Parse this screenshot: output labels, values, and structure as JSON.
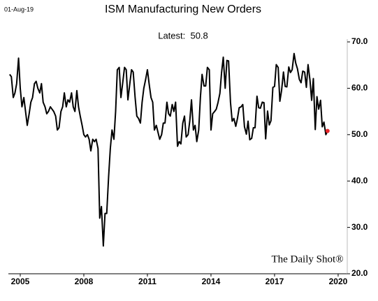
{
  "chart_data": {
    "type": "line",
    "date_stamp": "01-Aug-19",
    "title": "ISM Manufacturing New Orders",
    "annotation": "Latest:  50.8",
    "source": "The Daily Shot®",
    "color": "#000000",
    "highlight_color": "#e8262a",
    "xlim": [
      2004.44,
      2020.43
    ],
    "xticks": [
      2005,
      2008,
      2011,
      2014,
      2017,
      2020
    ],
    "ylim": [
      20,
      70
    ],
    "yticks": [
      {
        "value": 20,
        "label": "20.0"
      },
      {
        "value": 30,
        "label": "30.0"
      },
      {
        "value": 40,
        "label": "40.0"
      },
      {
        "value": 50,
        "label": "50.0"
      },
      {
        "value": 60,
        "label": "60.0"
      },
      {
        "value": 70,
        "label": "70.0"
      }
    ],
    "x": [
      2004.5,
      2004.58,
      2004.67,
      2004.75,
      2004.83,
      2004.92,
      2005.0,
      2005.08,
      2005.17,
      2005.25,
      2005.33,
      2005.42,
      2005.5,
      2005.58,
      2005.67,
      2005.75,
      2005.83,
      2005.92,
      2006.0,
      2006.08,
      2006.17,
      2006.25,
      2006.33,
      2006.42,
      2006.5,
      2006.58,
      2006.67,
      2006.75,
      2006.83,
      2006.92,
      2007.0,
      2007.08,
      2007.17,
      2007.25,
      2007.33,
      2007.42,
      2007.5,
      2007.58,
      2007.67,
      2007.75,
      2007.83,
      2007.92,
      2008.0,
      2008.08,
      2008.17,
      2008.25,
      2008.33,
      2008.42,
      2008.5,
      2008.58,
      2008.67,
      2008.75,
      2008.83,
      2008.92,
      2009.0,
      2009.08,
      2009.17,
      2009.25,
      2009.33,
      2009.42,
      2009.5,
      2009.58,
      2009.67,
      2009.75,
      2009.83,
      2009.92,
      2010.0,
      2010.08,
      2010.17,
      2010.25,
      2010.33,
      2010.42,
      2010.5,
      2010.58,
      2010.67,
      2010.75,
      2010.83,
      2010.92,
      2011.0,
      2011.08,
      2011.17,
      2011.25,
      2011.33,
      2011.42,
      2011.5,
      2011.58,
      2011.67,
      2011.75,
      2011.83,
      2011.92,
      2012.0,
      2012.08,
      2012.17,
      2012.25,
      2012.33,
      2012.42,
      2012.5,
      2012.58,
      2012.67,
      2012.75,
      2012.83,
      2012.92,
      2013.0,
      2013.08,
      2013.17,
      2013.25,
      2013.33,
      2013.42,
      2013.5,
      2013.58,
      2013.67,
      2013.75,
      2013.83,
      2013.92,
      2014.0,
      2014.08,
      2014.17,
      2014.25,
      2014.33,
      2014.42,
      2014.5,
      2014.58,
      2014.67,
      2014.75,
      2014.83,
      2014.92,
      2015.0,
      2015.08,
      2015.17,
      2015.25,
      2015.33,
      2015.42,
      2015.5,
      2015.58,
      2015.67,
      2015.75,
      2015.83,
      2015.92,
      2016.0,
      2016.08,
      2016.17,
      2016.25,
      2016.33,
      2016.42,
      2016.5,
      2016.58,
      2016.67,
      2016.75,
      2016.83,
      2016.92,
      2017.0,
      2017.08,
      2017.17,
      2017.25,
      2017.33,
      2017.42,
      2017.5,
      2017.58,
      2017.67,
      2017.75,
      2017.83,
      2017.92,
      2018.0,
      2018.08,
      2018.17,
      2018.25,
      2018.33,
      2018.42,
      2018.5,
      2018.58,
      2018.67,
      2018.75,
      2018.83,
      2018.92,
      2019.0,
      2019.08,
      2019.17,
      2019.25,
      2019.33,
      2019.42,
      2019.5
    ],
    "values": [
      63,
      62.5,
      58,
      59,
      61,
      66.5,
      60,
      56,
      58,
      55,
      52,
      54.5,
      57,
      58,
      61,
      61.5,
      60,
      59,
      61,
      57,
      56,
      54.5,
      55,
      56,
      55.5,
      55,
      54,
      51,
      51.5,
      55,
      56,
      59,
      56,
      57.5,
      57,
      59,
      56,
      55,
      59.5,
      56,
      54,
      52,
      50,
      49.5,
      50,
      49,
      46.5,
      49,
      48.5,
      49,
      47,
      32,
      34.5,
      26,
      33,
      33,
      41,
      47,
      51,
      49,
      55,
      64,
      64.5,
      58,
      61,
      64.5,
      64,
      57.5,
      61,
      64,
      63.5,
      58,
      54,
      53.5,
      52.5,
      57,
      60,
      62,
      64,
      61,
      58,
      57,
      51,
      52,
      50.5,
      49,
      50,
      52.5,
      52.5,
      57,
      54.5,
      54,
      56.5,
      55,
      57,
      47.5,
      48.5,
      48,
      52.5,
      54,
      49.5,
      50,
      53,
      57.5,
      51,
      52,
      48.5,
      51,
      58,
      63,
      60.5,
      60.5,
      64.5,
      64,
      51,
      54.5,
      55,
      55.5,
      56.9,
      58.9,
      63.4,
      66.7,
      60,
      66,
      65.9,
      57,
      52.9,
      53.5,
      51.8,
      53.5,
      55.8,
      56,
      56.5,
      51.7,
      50.1,
      52.9,
      48.9,
      49.2,
      51.5,
      51.5,
      58.3,
      55.8,
      55.7,
      57,
      56.9,
      49.1,
      55.1,
      52.1,
      53,
      60.2,
      60.4,
      65.1,
      64.5,
      57.2,
      59.5,
      63.5,
      60.4,
      60.3,
      64.6,
      63.4,
      64,
      67.5,
      65.4,
      64.2,
      61.9,
      61.2,
      63.7,
      63.5,
      60.2,
      65.1,
      61.8,
      57.4,
      62.1,
      51.1,
      58.2,
      55.5,
      57.4,
      51.7,
      52.7,
      50,
      50.8
    ]
  }
}
